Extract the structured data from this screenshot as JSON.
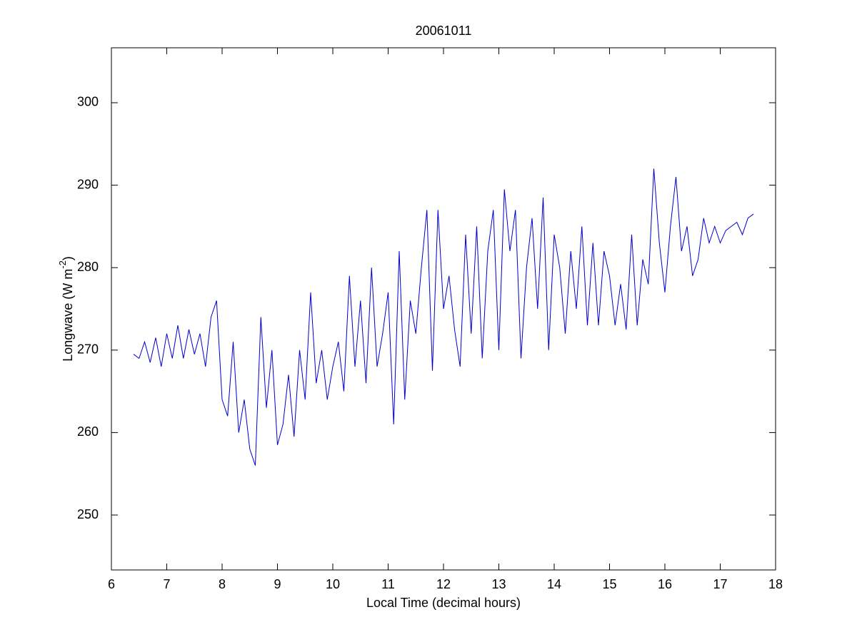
{
  "chart_data": {
    "type": "line",
    "title": "20061011",
    "x_label": "Local Time (decimal hours)",
    "y_label": {
      "text": "Longwave (W m",
      "superscript": "-2",
      "suffix": ")"
    },
    "xlim": [
      6,
      18
    ],
    "ylim": [
      243.34,
      306.66
    ],
    "xticks": [
      6,
      7,
      8,
      9,
      10,
      11,
      12,
      13,
      14,
      15,
      16,
      17,
      18
    ],
    "yticks": [
      250,
      260,
      270,
      280,
      290,
      300
    ],
    "grid": false,
    "x": [
      6.4,
      6.5,
      6.6,
      6.7,
      6.8,
      6.9,
      7.0,
      7.1,
      7.2,
      7.3,
      7.4,
      7.5,
      7.6,
      7.7,
      7.8,
      7.9,
      8.0,
      8.1,
      8.2,
      8.3,
      8.4,
      8.5,
      8.6,
      8.7,
      8.8,
      8.9,
      9.0,
      9.1,
      9.2,
      9.3,
      9.4,
      9.5,
      9.6,
      9.7,
      9.8,
      9.9,
      10.0,
      10.1,
      10.2,
      10.3,
      10.4,
      10.5,
      10.6,
      10.7,
      10.8,
      10.9,
      11.0,
      11.1,
      11.2,
      11.3,
      11.4,
      11.5,
      11.6,
      11.7,
      11.8,
      11.9,
      12.0,
      12.1,
      12.2,
      12.3,
      12.4,
      12.5,
      12.6,
      12.7,
      12.8,
      12.9,
      13.0,
      13.1,
      13.2,
      13.3,
      13.4,
      13.5,
      13.6,
      13.7,
      13.8,
      13.9,
      14.0,
      14.1,
      14.2,
      14.3,
      14.4,
      14.5,
      14.6,
      14.7,
      14.8,
      14.9,
      15.0,
      15.1,
      15.2,
      15.3,
      15.4,
      15.5,
      15.6,
      15.7,
      15.8,
      15.9,
      16.0,
      16.1,
      16.2,
      16.3,
      16.4,
      16.5,
      16.6,
      16.7,
      16.8,
      16.9,
      17.0,
      17.1,
      17.2,
      17.3,
      17.4,
      17.5,
      17.6
    ],
    "series": [
      {
        "color": "#0000cc",
        "values": [
          269.5,
          269,
          271,
          268.5,
          271.5,
          268,
          272,
          269,
          273,
          269,
          272.5,
          269.5,
          272,
          268,
          274,
          276,
          264,
          262,
          271,
          260,
          264,
          258,
          256,
          274,
          263,
          270,
          258.5,
          261,
          267,
          259.5,
          270,
          264,
          277,
          266,
          270,
          264,
          268,
          271,
          265,
          279,
          268,
          276,
          266,
          280,
          268,
          272,
          277,
          261,
          282,
          264,
          276,
          272,
          280,
          287,
          267.5,
          287,
          275,
          279,
          272.5,
          268,
          284,
          272,
          285,
          269,
          282,
          287,
          270,
          289.5,
          282,
          287,
          269,
          280,
          286,
          275,
          288.5,
          270,
          284,
          280,
          272,
          282,
          275,
          285,
          273,
          283,
          273,
          282,
          279,
          273,
          278,
          272.5,
          284,
          273,
          281,
          278,
          292,
          283,
          277,
          285,
          291,
          282,
          285,
          279,
          281,
          286,
          283,
          285,
          283,
          284.5,
          285,
          285.5,
          284,
          286,
          286.5
        ]
      }
    ]
  }
}
